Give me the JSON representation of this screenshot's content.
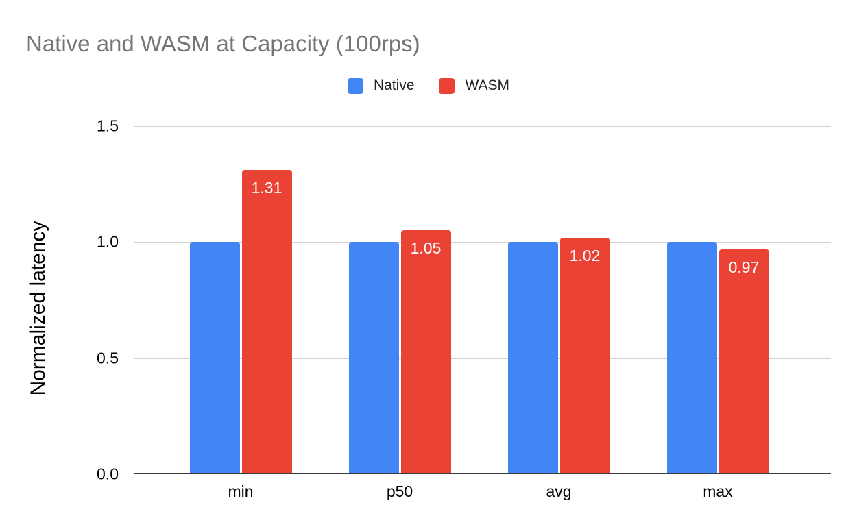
{
  "title": "Native and WASM at Capacity (100rps)",
  "legend": {
    "items": [
      {
        "label": "Native",
        "color": "#4285f4"
      },
      {
        "label": "WASM",
        "color": "#ea4335"
      }
    ]
  },
  "colors": {
    "native_blue": "#4285f4",
    "wasm_red": "#ea4335",
    "title_gray": "#757575",
    "gridline": "#d2d2d2",
    "baseline": "#3c3c3c",
    "bar_label_white": "#ffffff"
  },
  "chart_data": {
    "type": "bar",
    "title": "Native and WASM at Capacity (100rps)",
    "categories": [
      "min",
      "p50",
      "avg",
      "max"
    ],
    "series": [
      {
        "name": "Native",
        "color": "#4285f4",
        "values": [
          1.0,
          1.0,
          1.0,
          1.0
        ],
        "show_labels": false,
        "label_texts": [
          "",
          "",
          "",
          ""
        ]
      },
      {
        "name": "WASM",
        "color": "#ea4335",
        "values": [
          1.31,
          1.05,
          1.02,
          0.97
        ],
        "show_labels": true,
        "label_texts": [
          "1.31",
          "1.05",
          "1.02",
          "0.97"
        ]
      }
    ],
    "xlabel": "",
    "ylabel": "Normalized latency",
    "ylim": [
      0,
      1.5
    ],
    "yticks": [
      0.0,
      0.5,
      1.0,
      1.5
    ],
    "ytick_labels": [
      "0.0",
      "0.5",
      "1.0",
      "1.5"
    ],
    "grid": true,
    "legend_position": "top"
  }
}
